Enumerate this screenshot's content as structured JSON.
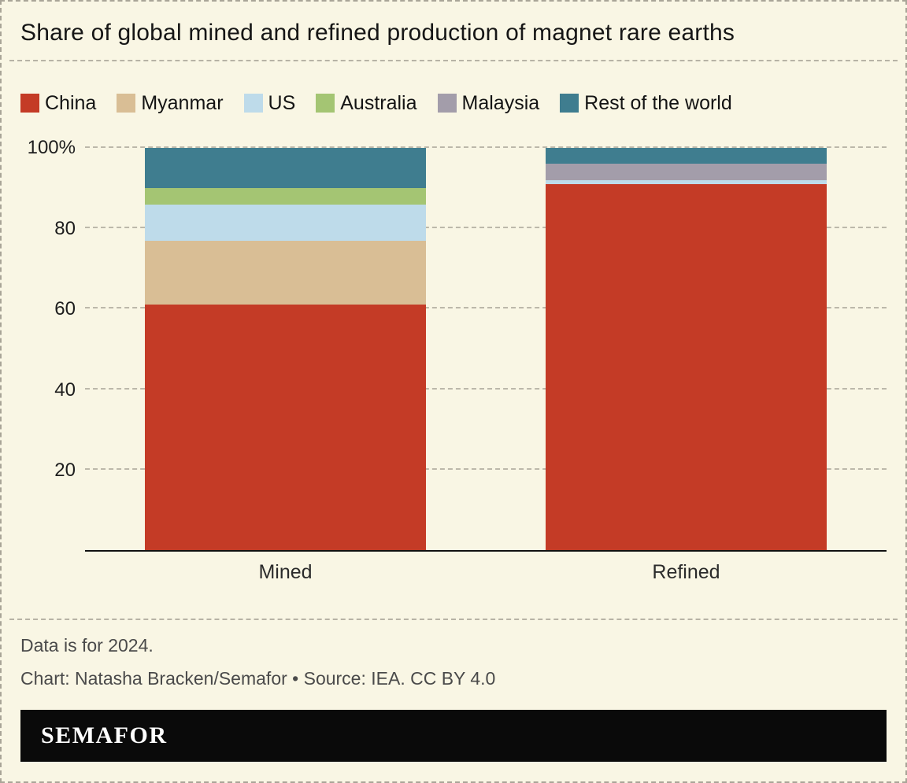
{
  "title": "Share of global mined and refined production of magnet rare earths",
  "chart_data": {
    "type": "bar",
    "stacked": true,
    "percent": true,
    "categories": [
      "Mined",
      "Refined"
    ],
    "series": [
      {
        "name": "China",
        "color": "#c43b26",
        "values": [
          61,
          91
        ]
      },
      {
        "name": "Myanmar",
        "color": "#d9be95",
        "values": [
          16,
          0
        ]
      },
      {
        "name": "US",
        "color": "#bedbea",
        "values": [
          9,
          1
        ]
      },
      {
        "name": "Australia",
        "color": "#a4c573",
        "values": [
          4,
          0
        ]
      },
      {
        "name": "Malaysia",
        "color": "#a39daa",
        "values": [
          0,
          4
        ]
      },
      {
        "name": "Rest of the world",
        "color": "#3f7d8f",
        "values": [
          10,
          4
        ]
      }
    ],
    "ylim": [
      0,
      100
    ],
    "yticks": [
      20,
      40,
      60,
      80,
      100
    ],
    "ytick_labels": [
      "20",
      "40",
      "60",
      "80",
      "100%"
    ],
    "grid": "horizontal-dashed",
    "legend_position": "top"
  },
  "notes": {
    "line1": "Data is for 2024.",
    "line2": "Chart: Natasha Bracken/Semafor • Source: IEA. CC BY 4.0"
  },
  "branding": {
    "logo_text": "SEMAFOR"
  }
}
